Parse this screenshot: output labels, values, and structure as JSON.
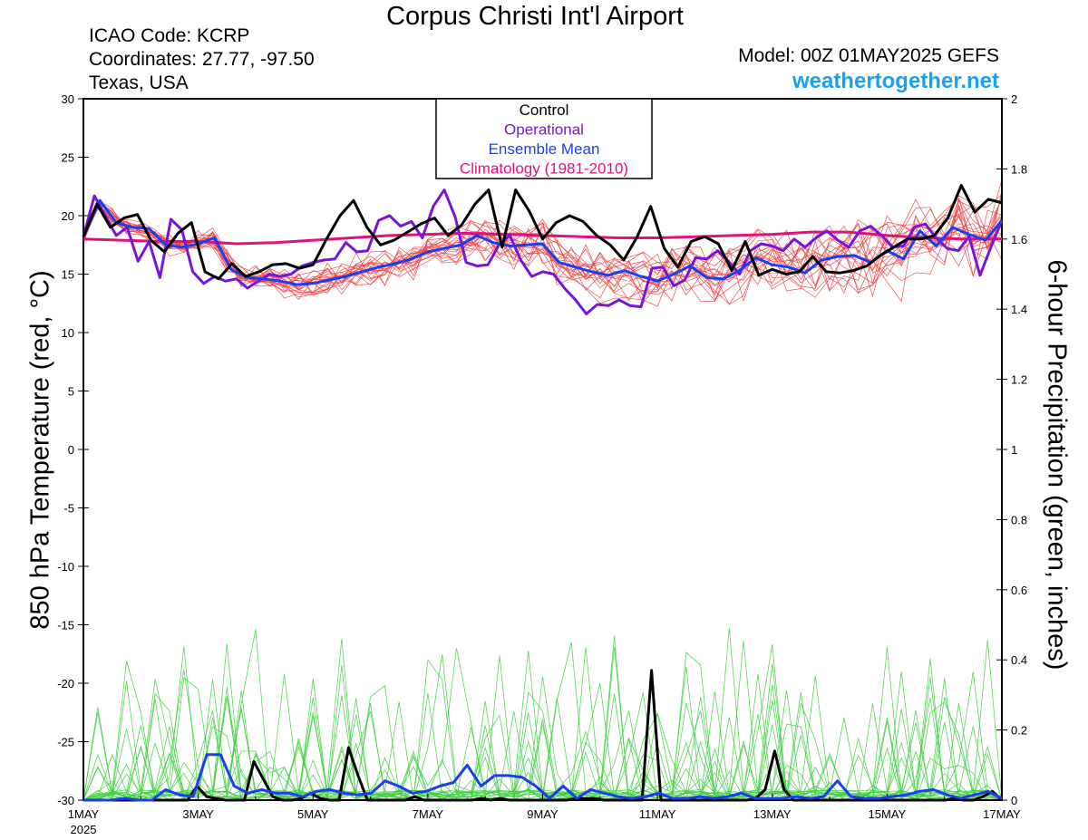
{
  "header": {
    "title": "Corpus Christi Int'l Airport",
    "icao": "ICAO Code: KCRP",
    "coords": "Coordinates: 27.77, -97.50",
    "region": "Texas, USA",
    "model": "Model: 00Z 01MAY2025 GEFS",
    "site": "weathertogether.net"
  },
  "colors": {
    "control": "#000000",
    "operational": "#7a14d9",
    "mean": "#1a3ff0",
    "climatology": "#e0127a",
    "members_temp": "#f04040",
    "members_precip": "#3cd03c"
  },
  "chart_data": {
    "type": "line",
    "ylabel": "850 hPa Temperature (red, °C)",
    "y2label": "6-hour Precipitation (green, inches)",
    "xlim": [
      0,
      16
    ],
    "ylim": [
      -30,
      30
    ],
    "y2lim": [
      0,
      2
    ],
    "y_ticks": [
      "30",
      "25",
      "20",
      "15",
      "10",
      "5",
      "0",
      "-5",
      "-10",
      "-15",
      "-20",
      "-25",
      "-30"
    ],
    "y2_ticks": [
      "2",
      "1.8",
      "1.6",
      "1.4",
      "1.2",
      "1",
      "0.8",
      "0.6",
      "0.4",
      "0.2",
      "0"
    ],
    "x_ticks": [
      {
        "x": 0,
        "label": "1MAY",
        "sub": "2025"
      },
      {
        "x": 2,
        "label": "3MAY"
      },
      {
        "x": 4,
        "label": "5MAY"
      },
      {
        "x": 6,
        "label": "7MAY"
      },
      {
        "x": 8,
        "label": "9MAY"
      },
      {
        "x": 10,
        "label": "11MAY"
      },
      {
        "x": 12,
        "label": "13MAY"
      },
      {
        "x": 14,
        "label": "15MAY"
      },
      {
        "x": 16,
        "label": "17MAY"
      }
    ],
    "legend": [
      "Control",
      "Operational",
      "Ensemble Mean",
      "Climatology (1981-2010)"
    ],
    "legend_position": "top-center",
    "series": [
      {
        "name": "Control",
        "axis": "temp",
        "values": [
          18.2,
          21.0,
          19.0,
          19.8,
          20.1,
          17.9,
          16.9,
          18.5,
          19.4,
          15.2,
          14.6,
          15.9,
          14.8,
          15.2,
          15.8,
          15.9,
          15.5,
          15.8,
          18.0,
          20.0,
          21.3,
          19.0,
          17.5,
          17.9,
          18.6,
          19.3,
          19.8,
          18.3,
          19.2,
          21.0,
          22.2,
          17.3,
          22.2,
          20.4,
          18.0,
          19.4,
          20.0,
          19.5,
          18.3,
          17.5,
          16.2,
          18.2,
          20.8,
          17.2,
          15.6,
          17.8,
          18.2,
          17.6,
          15.3,
          17.8,
          14.9,
          15.4,
          15.0,
          15.2,
          16.5,
          15.2,
          15.1,
          15.3,
          15.7,
          16.6,
          17.3,
          18.0,
          18.0,
          18.3,
          19.8,
          22.6,
          20.3,
          21.4,
          21.1
        ]
      },
      {
        "name": "Operational",
        "axis": "temp",
        "values": [
          18.2,
          21.7,
          20.0,
          18.3,
          19.0,
          16.1,
          17.8,
          14.7,
          19.7,
          18.8,
          15.2,
          14.2,
          14.8,
          14.4,
          14.6,
          13.8,
          14.4,
          15.0,
          14.8,
          15.0,
          15.7,
          16.0,
          16.2,
          16.3,
          17.7,
          16.9,
          17.0,
          19.6,
          20.0,
          19.1,
          19.5,
          18.1,
          20.8,
          22.2,
          19.9,
          16.0,
          15.7,
          15.8,
          17.5,
          18.3,
          16.2,
          14.8,
          15.2,
          15.0,
          13.8,
          12.8,
          11.6,
          12.4,
          12.3,
          12.8,
          12.3,
          12.2,
          15.5,
          15.6,
          14.0,
          14.5,
          16.4,
          16.3,
          17.0,
          16.1,
          15.0,
          17.0,
          17.6,
          17.4,
          17.0,
          18.0,
          17.3,
          18.1,
          18.7,
          17.9,
          17.3,
          18.7,
          19.1,
          18.3,
          17.3,
          17.4,
          19.0,
          19.3,
          18.1,
          17.2,
          17.0,
          18.2,
          14.9,
          17.3,
          19.6
        ]
      },
      {
        "name": "Ensemble Mean",
        "axis": "temp",
        "values": [
          18.2,
          21.3,
          19.4,
          19.0,
          18.9,
          17.5,
          17.3,
          17.6,
          18.1,
          15.4,
          14.7,
          14.6,
          14.4,
          14.1,
          14.2,
          14.5,
          14.8,
          15.2,
          15.6,
          15.9,
          16.3,
          16.9,
          17.2,
          17.5,
          18.3,
          17.7,
          17.4,
          17.5,
          17.6,
          16.0,
          15.6,
          15.2,
          14.9,
          15.3,
          14.8,
          14.4,
          15.0,
          15.7,
          14.7,
          14.6,
          15.3,
          16.4,
          15.8,
          15.6,
          15.1,
          16.2,
          16.5,
          16.6,
          16.0,
          17.0,
          16.3,
          18.7,
          17.4,
          19.0,
          18.4,
          17.9,
          19.6
        ]
      },
      {
        "name": "Climatology (1981-2010)",
        "axis": "temp",
        "values": [
          18.0,
          17.9,
          17.8,
          17.8,
          17.6,
          17.7,
          17.9,
          18.1,
          18.3,
          18.4,
          18.5,
          18.4,
          18.3,
          18.2,
          18.1,
          18.1,
          18.2,
          18.3,
          18.4,
          18.6,
          18.6,
          18.3,
          18.1,
          18.0,
          18.0
        ]
      },
      {
        "name": "Control",
        "axis": "precip",
        "values": [
          0,
          0,
          0,
          0,
          0,
          0,
          0,
          0,
          0,
          0,
          0,
          0,
          0.04,
          0.01,
          0.005,
          0,
          0,
          0,
          0.11,
          0.06,
          0.01,
          0,
          0,
          0.005,
          0.02,
          0.005,
          0,
          0,
          0.15,
          0.07,
          0,
          0,
          0,
          0,
          0,
          0.01,
          0,
          0,
          0,
          0,
          0,
          0,
          0.005,
          0,
          0.005,
          0,
          0,
          0,
          0,
          0,
          0,
          0,
          0.005,
          0.005,
          0.005,
          0,
          0,
          0,
          0,
          0,
          0.37,
          0,
          0,
          0,
          0,
          0,
          0,
          0,
          0,
          0,
          0,
          0.005,
          0.03,
          0.14,
          0.03,
          0,
          0,
          0,
          0,
          0,
          0,
          0,
          0,
          0,
          0,
          0,
          0,
          0,
          0,
          0,
          0,
          0,
          0.005,
          0,
          0,
          0.01,
          0.025,
          0
        ]
      },
      {
        "name": "Ensemble Mean",
        "axis": "precip",
        "values": [
          0,
          0,
          0,
          0.005,
          0,
          0,
          0.03,
          0.015,
          0.01,
          0.13,
          0.13,
          0.04,
          0.02,
          0.03,
          0.02,
          0.02,
          0.01,
          0.025,
          0.03,
          0.02,
          0.015,
          0.02,
          0.055,
          0.04,
          0.02,
          0.025,
          0.04,
          0.05,
          0.1,
          0.04,
          0.07,
          0.07,
          0.065,
          0.04,
          0.005,
          0.04,
          0.005,
          0.03,
          0.02,
          0.01,
          0.005,
          0.01,
          0.02,
          0.005,
          0.005,
          0.01,
          0.005,
          0.01,
          0.02,
          0.005,
          0.005,
          0.005,
          0.01,
          0.005,
          0.01,
          0.055,
          0.01,
          0.005,
          0.005,
          0.01,
          0.015,
          0.025,
          0.03,
          0.015,
          0.005,
          0.015,
          0.025,
          0.005
        ]
      }
    ]
  }
}
